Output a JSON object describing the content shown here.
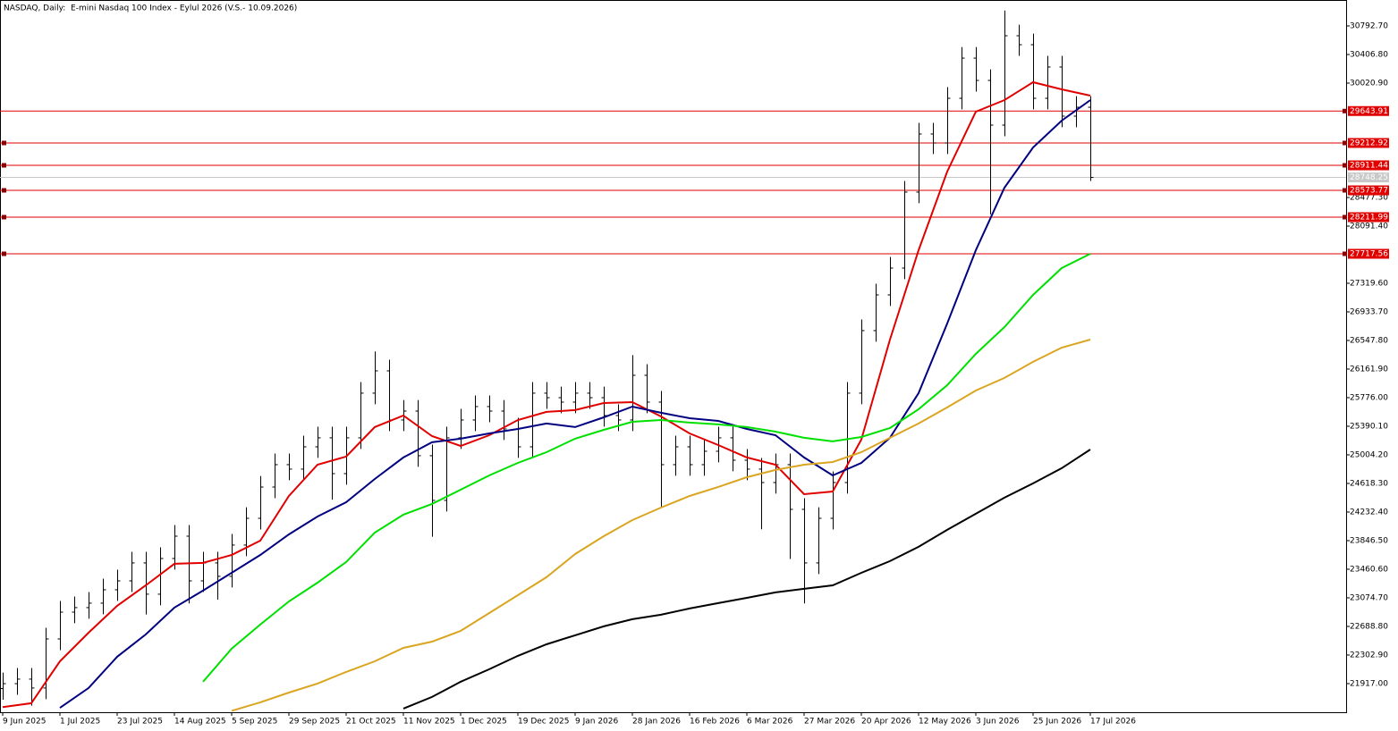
{
  "chart_data": {
    "type": "ohlc",
    "title": "NASDAQ, Daily:  E-mini Nasdaq 100 Index - Eylul 2026 (V.S.- 10.09.2026)",
    "categories": [
      "9 Jun 2025",
      null,
      null,
      null,
      "1 Jul 2025",
      null,
      null,
      null,
      "23 Jul 2025",
      null,
      null,
      null,
      "14 Aug 2025",
      null,
      null,
      null,
      "5 Sep 2025",
      null,
      null,
      null,
      "29 Sep 2025",
      null,
      null,
      null,
      "21 Oct 2025",
      null,
      null,
      null,
      "11 Nov 2025",
      null,
      null,
      null,
      "1 Dec 2025",
      null,
      null,
      null,
      "19 Dec 2025",
      null,
      null,
      null,
      "9 Jan 2026",
      null,
      null,
      null,
      "28 Jan 2026",
      null,
      null,
      null,
      "16 Feb 2026",
      null,
      null,
      null,
      "6 Mar 2026",
      null,
      null,
      null,
      "27 Mar 2026",
      null,
      null,
      null,
      "20 Apr 2026",
      null,
      null,
      null,
      "12 May 2026",
      null,
      null,
      null,
      "3 Jun 2026",
      null,
      null,
      null,
      "25 Jun 2026",
      null,
      null,
      null,
      "17 Jul 2026"
    ],
    "open": [
      21850,
      21917,
      21978,
      21858,
      22520,
      22882,
      22943,
      23003,
      23184,
      23304,
      23546,
      23124,
      23606,
      23907,
      23304,
      23546,
      23365,
      23787,
      24148,
      24570,
      24872,
      24812,
      25113,
      25234,
      24751,
      25234,
      25837,
      26138,
      25475,
      25595,
      24993,
      24390,
      25234,
      25475,
      25656,
      25595,
      25354,
      25113,
      25837,
      25776,
      25716,
      25837,
      25776,
      25535,
      25475,
      26078,
      25716,
      24872,
      25113,
      24872,
      25053,
      25234,
      24932,
      24812,
      24631,
      24872,
      24269,
      23546,
      24148,
      24631,
      25837,
      26681,
      27163,
      27525,
      28550,
      29334,
      29213,
      29816,
      30358,
      30057,
      29454,
      30660,
      30539,
      29816,
      30238,
      29575,
      29695
    ],
    "high": [
      22067,
      22128,
      22128,
      22670,
      23032,
      23093,
      23153,
      23334,
      23454,
      23696,
      23696,
      23756,
      24057,
      24057,
      23696,
      23696,
      23937,
      24298,
      24720,
      25022,
      25022,
      25263,
      25384,
      25384,
      25384,
      25987,
      26400,
      26288,
      25745,
      25745,
      25143,
      25384,
      25625,
      25806,
      25806,
      25745,
      25504,
      25987,
      25987,
      25926,
      25987,
      25987,
      25926,
      25685,
      26350,
      26228,
      25866,
      25263,
      25263,
      25203,
      25384,
      25384,
      25082,
      24962,
      25022,
      25022,
      24419,
      24298,
      24781,
      25987,
      26831,
      27313,
      27675,
      28700,
      29484,
      29484,
      29966,
      30508,
      30508,
      30207,
      31000,
      30810,
      30689,
      30388,
      30388,
      29845,
      29845
    ],
    "low": [
      21700,
      21767,
      21620,
      21708,
      22370,
      22732,
      22793,
      22853,
      23034,
      23154,
      22850,
      22974,
      23456,
      23000,
      23154,
      23050,
      23215,
      23637,
      23998,
      24420,
      24662,
      24662,
      24963,
      24400,
      24601,
      25084,
      25687,
      25325,
      25325,
      24843,
      23900,
      24240,
      25084,
      25325,
      25445,
      25204,
      24963,
      24963,
      25626,
      25566,
      25566,
      25626,
      25385,
      25325,
      25325,
      25566,
      24300,
      24722,
      24722,
      24722,
      24903,
      24782,
      24662,
      24000,
      24481,
      23600,
      23000,
      23396,
      23998,
      24481,
      25687,
      26531,
      27013,
      27375,
      28400,
      29063,
      29063,
      29666,
      29907,
      28250,
      29304,
      30389,
      29666,
      29666,
      29425,
      29425,
      28700
    ],
    "close": [
      21917,
      21978,
      21858,
      22520,
      22882,
      22943,
      23003,
      23184,
      23304,
      23546,
      23124,
      23606,
      23907,
      23304,
      23546,
      23365,
      23787,
      24148,
      24570,
      24872,
      24812,
      25113,
      25234,
      24751,
      25234,
      25837,
      26138,
      25475,
      25595,
      24993,
      24390,
      25234,
      25475,
      25656,
      25595,
      25354,
      25113,
      25837,
      25776,
      25716,
      25837,
      25776,
      25535,
      25475,
      26078,
      25716,
      24872,
      25113,
      24872,
      25053,
      25234,
      24932,
      24812,
      24631,
      24872,
      24269,
      23546,
      24148,
      24631,
      25837,
      26681,
      27163,
      27525,
      28550,
      29334,
      29213,
      29816,
      30358,
      30057,
      29454,
      30660,
      30539,
      29816,
      30238,
      29575,
      29695,
      28748
    ],
    "color": "#000000",
    "lines": [
      {
        "color": "#e00000",
        "values": [
          21600,
          21653,
          22219,
          22605,
          22967,
          23244,
          23534,
          23546,
          23654,
          23847,
          24450,
          24872,
          24981,
          25379,
          25535,
          25258,
          25125,
          25270,
          25475,
          25584,
          25608,
          25704,
          25716,
          25523,
          25294,
          25137,
          24969,
          24872,
          24474,
          24510,
          25210,
          26560,
          27766,
          28827,
          29635,
          29792,
          30033,
          29937,
          29852
        ]
      },
      {
        "color": "#000080",
        "values": [
          null,
          null,
          21590,
          21858,
          22280,
          22581,
          22943,
          23172,
          23413,
          23654,
          23931,
          24172,
          24365,
          24679,
          24969,
          25174,
          25222,
          25294,
          25354,
          25427,
          25379,
          25511,
          25656,
          25572,
          25499,
          25463,
          25354,
          25270,
          24969,
          24727,
          24896,
          25234,
          25837,
          26777,
          27766,
          28610,
          29153,
          29514,
          29792
        ]
      },
      {
        "color": "#00e000",
        "values": [
          null,
          null,
          null,
          null,
          null,
          null,
          null,
          21942,
          22388,
          22714,
          23027,
          23280,
          23558,
          23955,
          24197,
          24342,
          24534,
          24727,
          24896,
          25041,
          25222,
          25342,
          25451,
          25475,
          25439,
          25415,
          25379,
          25318,
          25234,
          25186,
          25246,
          25366,
          25620,
          25945,
          26367,
          26729,
          27163,
          27525,
          27718
        ]
      },
      {
        "color": "#daa520",
        "values": [
          null,
          null,
          null,
          null,
          null,
          null,
          null,
          null,
          21550,
          21665,
          21797,
          21918,
          22075,
          22219,
          22400,
          22484,
          22629,
          22870,
          23111,
          23353,
          23666,
          23907,
          24124,
          24293,
          24450,
          24571,
          24703,
          24800,
          24872,
          24908,
          25041,
          25234,
          25427,
          25644,
          25873,
          26042,
          26259,
          26451,
          26560
        ]
      },
      {
        "color": "#000000",
        "values": [
          null,
          null,
          null,
          null,
          null,
          null,
          null,
          null,
          null,
          null,
          null,
          null,
          null,
          null,
          21581,
          21737,
          21942,
          22111,
          22292,
          22448,
          22569,
          22690,
          22786,
          22847,
          22931,
          23003,
          23075,
          23148,
          23196,
          23244,
          23413,
          23570,
          23763,
          23992,
          24209,
          24426,
          24619,
          24824,
          25077
        ]
      }
    ],
    "levels": [
      29643.91,
      29212.92,
      28911.44,
      28573.77,
      28211.99,
      27717.56
    ],
    "level_color": "#e00000",
    "current_price": 28748.25,
    "ylim": [
      21531.15,
      31142.4
    ],
    "yticks": [
      {
        "value": 30792.7,
        "label": "30792.70"
      },
      {
        "value": 30406.8,
        "label": "30406.80"
      },
      {
        "value": 30020.9,
        "label": "30020.90"
      },
      {
        "value": 28477.3,
        "label": "28477.30"
      },
      {
        "value": 28091.4,
        "label": "28091.40"
      },
      {
        "value": 27319.6,
        "label": "27319.60"
      },
      {
        "value": 26933.7,
        "label": "26933.70"
      },
      {
        "value": 26547.8,
        "label": "26547.80"
      },
      {
        "value": 26161.9,
        "label": "26161.90"
      },
      {
        "value": 25776,
        "label": "25776.00"
      },
      {
        "value": 25390.1,
        "label": "25390.10"
      },
      {
        "value": 25004.2,
        "label": "25004.20"
      },
      {
        "value": 24618.3,
        "label": "24618.30"
      },
      {
        "value": 24232.4,
        "label": "24232.40"
      },
      {
        "value": 23846.5,
        "label": "23846.50"
      },
      {
        "value": 23460.6,
        "label": "23460.60"
      },
      {
        "value": 23074.7,
        "label": "23074.70"
      },
      {
        "value": 22688.8,
        "label": "22688.80"
      },
      {
        "value": 22302.9,
        "label": "22302.90"
      },
      {
        "value": 21917,
        "label": "21917.00"
      }
    ]
  }
}
